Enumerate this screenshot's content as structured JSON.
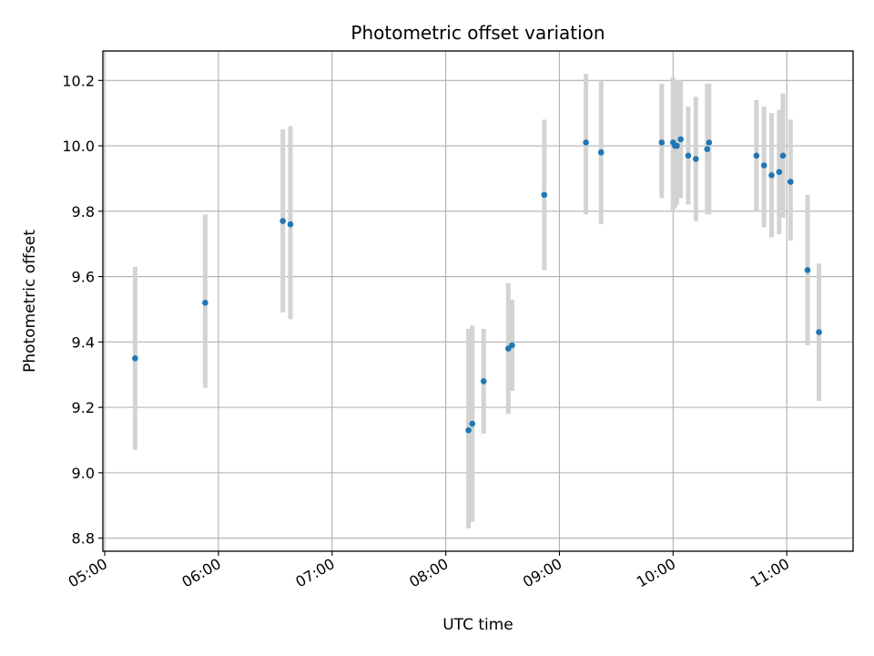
{
  "chart_data": {
    "type": "scatter",
    "title": "Photometric offset variation",
    "xlabel": "UTC time",
    "ylabel": "Photometric offset",
    "xlim": [
      "04:59",
      "11:35"
    ],
    "ylim": [
      8.76,
      10.29
    ],
    "x_ticks": [
      "05:00",
      "06:00",
      "07:00",
      "08:00",
      "09:00",
      "10:00",
      "11:00"
    ],
    "y_ticks": [
      "8.8",
      "9.0",
      "9.2",
      "9.4",
      "9.6",
      "9.8",
      "10.0",
      "10.2"
    ],
    "grid": true,
    "marker_color": "#1f77b4",
    "errorbar_color": "#d3d3d3",
    "points": [
      {
        "t": "05:16",
        "y": 9.35,
        "lo": 9.07,
        "hi": 9.63
      },
      {
        "t": "05:53",
        "y": 9.52,
        "lo": 9.26,
        "hi": 9.79
      },
      {
        "t": "06:34",
        "y": 9.77,
        "lo": 9.49,
        "hi": 10.05
      },
      {
        "t": "06:38",
        "y": 9.76,
        "lo": 9.47,
        "hi": 10.06
      },
      {
        "t": "08:12",
        "y": 9.13,
        "lo": 8.83,
        "hi": 9.44
      },
      {
        "t": "08:14",
        "y": 9.15,
        "lo": 8.85,
        "hi": 9.45
      },
      {
        "t": "08:20",
        "y": 9.28,
        "lo": 9.12,
        "hi": 9.44
      },
      {
        "t": "08:33",
        "y": 9.38,
        "lo": 9.18,
        "hi": 9.58
      },
      {
        "t": "08:35",
        "y": 9.39,
        "lo": 9.25,
        "hi": 9.53
      },
      {
        "t": "08:52",
        "y": 9.85,
        "lo": 9.62,
        "hi": 10.08
      },
      {
        "t": "09:14",
        "y": 10.01,
        "lo": 9.79,
        "hi": 10.22
      },
      {
        "t": "09:22",
        "y": 9.98,
        "lo": 9.76,
        "hi": 10.2
      },
      {
        "t": "09:54",
        "y": 10.01,
        "lo": 9.84,
        "hi": 10.19
      },
      {
        "t": "10:00",
        "y": 10.01,
        "lo": 9.8,
        "hi": 10.21
      },
      {
        "t": "10:01",
        "y": 10.0,
        "lo": 9.81,
        "hi": 10.2
      },
      {
        "t": "10:02",
        "y": 10.0,
        "lo": 9.82,
        "hi": 10.2
      },
      {
        "t": "10:04",
        "y": 10.02,
        "lo": 9.84,
        "hi": 10.2
      },
      {
        "t": "10:08",
        "y": 9.97,
        "lo": 9.82,
        "hi": 10.12
      },
      {
        "t": "10:12",
        "y": 9.96,
        "lo": 9.77,
        "hi": 10.15
      },
      {
        "t": "10:18",
        "y": 9.99,
        "lo": 9.79,
        "hi": 10.19
      },
      {
        "t": "10:19",
        "y": 10.01,
        "lo": 9.79,
        "hi": 10.19
      },
      {
        "t": "10:44",
        "y": 9.97,
        "lo": 9.8,
        "hi": 10.14
      },
      {
        "t": "10:48",
        "y": 9.94,
        "lo": 9.75,
        "hi": 10.12
      },
      {
        "t": "10:52",
        "y": 9.91,
        "lo": 9.72,
        "hi": 10.1
      },
      {
        "t": "10:56",
        "y": 9.92,
        "lo": 9.73,
        "hi": 10.11
      },
      {
        "t": "10:58",
        "y": 9.97,
        "lo": 9.78,
        "hi": 10.16
      },
      {
        "t": "11:02",
        "y": 9.89,
        "lo": 9.71,
        "hi": 10.08
      },
      {
        "t": "11:11",
        "y": 9.62,
        "lo": 9.39,
        "hi": 9.85
      },
      {
        "t": "11:17",
        "y": 9.43,
        "lo": 9.22,
        "hi": 9.64
      }
    ]
  }
}
